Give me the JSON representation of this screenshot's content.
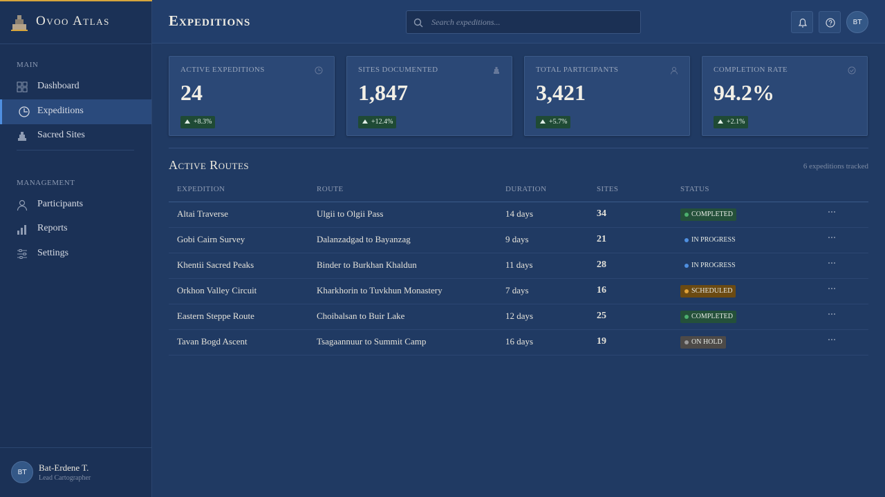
{
  "brand": "Ovoo Atlas",
  "nav": {
    "sections": [
      {
        "label": "MAIN",
        "items": [
          "Dashboard",
          "Expeditions",
          "Sacred Sites"
        ]
      },
      {
        "label": "MANAGEMENT",
        "items": [
          "Participants",
          "Reports",
          "Settings"
        ]
      }
    ]
  },
  "user": {
    "initials": "BT",
    "name": "Bat-Erdene T.",
    "role": "Lead Cartographer"
  },
  "header": {
    "title": "Expeditions",
    "search_placeholder": "Search expeditions...",
    "avatar": "BT"
  },
  "stats": [
    {
      "label": "ACTIVE EXPEDITIONS",
      "value": "24",
      "change": "+8.3%"
    },
    {
      "label": "SITES DOCUMENTED",
      "value": "1,847",
      "change": "+12.4%"
    },
    {
      "label": "TOTAL PARTICIPANTS",
      "value": "3,421",
      "change": "+5.7%"
    },
    {
      "label": "COMPLETION RATE",
      "value": "94.2%",
      "change": "+2.1%"
    }
  ],
  "table": {
    "title": "Active Routes",
    "note": "6 expeditions tracked",
    "columns": [
      "EXPEDITION",
      "ROUTE",
      "DURATION",
      "SITES",
      "STATUS"
    ],
    "rows": [
      {
        "expedition": "Altai Traverse",
        "route": "Ulgii to Olgii Pass",
        "duration": "14 days",
        "sites": 34,
        "status": "COMPLETED",
        "status_color": "#4caf6e",
        "status_bg": "#24503a"
      },
      {
        "expedition": "Gobi Cairn Survey",
        "route": "Dalanzadgad to Bayanzag",
        "duration": "9 days",
        "sites": 21,
        "status": "IN PROGRESS",
        "status_color": "#4f8fe0",
        "status_bg": "transparent"
      },
      {
        "expedition": "Khentii Sacred Peaks",
        "route": "Binder to Burkhan Khaldun",
        "duration": "11 days",
        "sites": 28,
        "status": "IN PROGRESS",
        "status_color": "#4f8fe0",
        "status_bg": "transparent"
      },
      {
        "expedition": "Orkhon Valley Circuit",
        "route": "Kharkhorin to Tuvkhun Monastery",
        "duration": "7 days",
        "sites": 16,
        "status": "SCHEDULED",
        "status_color": "#e0a33a",
        "status_bg": "#6b4a12"
      },
      {
        "expedition": "Eastern Steppe Route",
        "route": "Choibalsan to Buir Lake",
        "duration": "12 days",
        "sites": 25,
        "status": "COMPLETED",
        "status_color": "#4caf6e",
        "status_bg": "#24503a"
      },
      {
        "expedition": "Tavan Bogd Ascent",
        "route": "Tsagaannuur to Summit Camp",
        "duration": "16 days",
        "sites": 19,
        "status": "ON HOLD",
        "status_color": "#9a9a9a",
        "status_bg": "#4d4a48"
      }
    ]
  }
}
